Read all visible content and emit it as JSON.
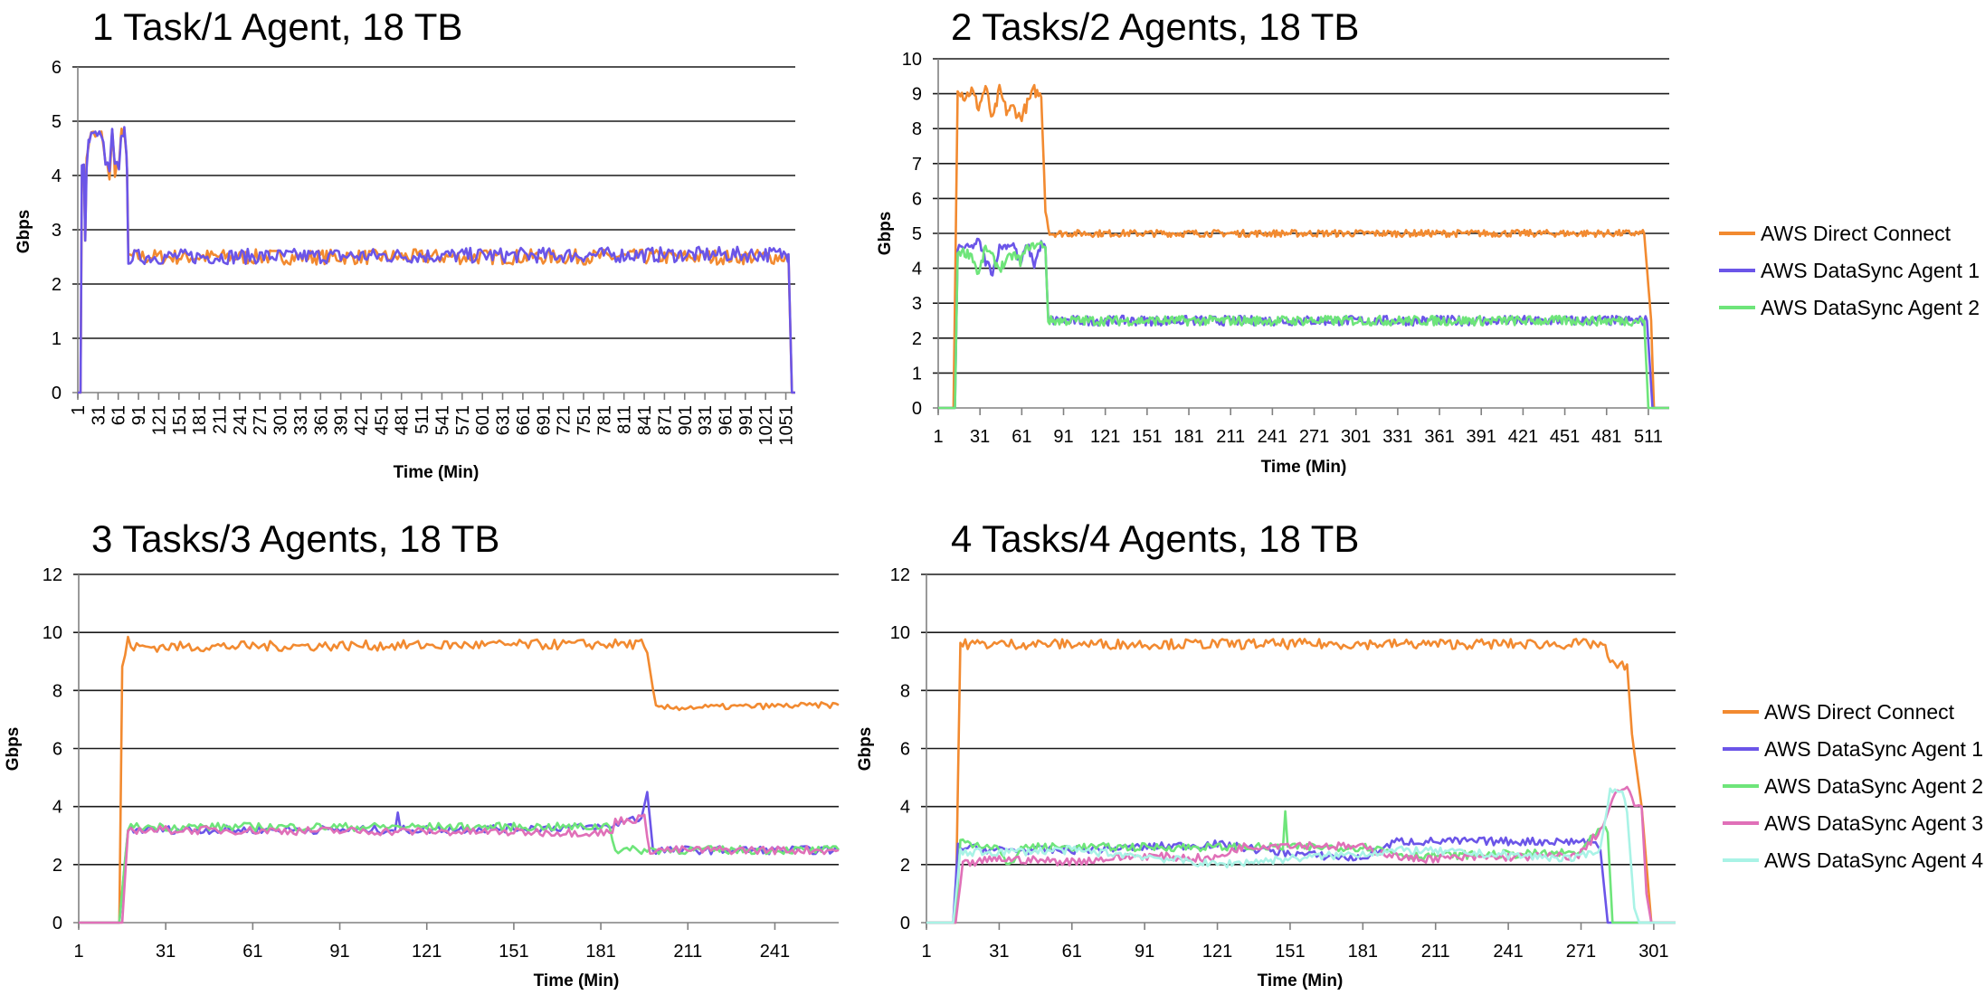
{
  "colors": {
    "direct_connect": "#F28A30",
    "agent1": "#6B55E8",
    "agent2": "#6EE57A",
    "agent3": "#E070B8",
    "agent4": "#A9F3E6"
  },
  "chart_data": [
    {
      "type": "line",
      "title": "1 Task/1 Agent, 18 TB",
      "xlabel": "Time (Min)",
      "ylabel": "Gbps",
      "xlim": [
        1,
        1065
      ],
      "ylim": [
        0,
        6
      ],
      "yticks": [
        "0",
        "1",
        "2",
        "3",
        "4",
        "5",
        "6"
      ],
      "xticks": [
        "1",
        "31",
        "61",
        "91",
        "121",
        "151",
        "181",
        "211",
        "241",
        "271",
        "301",
        "331",
        "361",
        "391",
        "421",
        "451",
        "481",
        "511",
        "541",
        "571",
        "601",
        "631",
        "661",
        "691",
        "721",
        "751",
        "781",
        "811",
        "841",
        "871",
        "901",
        "931",
        "961",
        "991",
        "1021",
        "1051"
      ],
      "xtick_rotation": "vertical",
      "grid": true,
      "legend": "none",
      "series": [
        {
          "color": "#F28A30",
          "points": [
            [
              1,
              0
            ],
            [
              5,
              0
            ],
            [
              7,
              4.1
            ],
            [
              10,
              4.2
            ],
            [
              12,
              2.8
            ],
            [
              14,
              4.2
            ],
            [
              18,
              4.7
            ],
            [
              24,
              4.8
            ],
            [
              30,
              4.7
            ],
            [
              36,
              4.8
            ],
            [
              42,
              4.2
            ],
            [
              48,
              4.0
            ],
            [
              52,
              4.8
            ],
            [
              56,
              4.1
            ],
            [
              62,
              4.2
            ],
            [
              66,
              4.8
            ],
            [
              70,
              4.8
            ],
            [
              74,
              4.1
            ],
            [
              76,
              2.5
            ],
            [
              1055,
              2.5
            ],
            [
              1060,
              0
            ],
            [
              1065,
              0
            ]
          ]
        },
        {
          "color": "#6B55E8",
          "points": [
            [
              1,
              0
            ],
            [
              5,
              0
            ],
            [
              7,
              4.1
            ],
            [
              10,
              4.2
            ],
            [
              12,
              2.8
            ],
            [
              14,
              4.2
            ],
            [
              18,
              4.7
            ],
            [
              24,
              4.8
            ],
            [
              30,
              4.7
            ],
            [
              36,
              4.8
            ],
            [
              42,
              4.2
            ],
            [
              48,
              4.1
            ],
            [
              52,
              4.8
            ],
            [
              56,
              4.1
            ],
            [
              62,
              4.2
            ],
            [
              66,
              4.8
            ],
            [
              70,
              4.8
            ],
            [
              74,
              4.1
            ],
            [
              76,
              2.5
            ],
            [
              1055,
              2.55
            ],
            [
              1060,
              0
            ],
            [
              1065,
              0
            ]
          ]
        }
      ]
    },
    {
      "type": "line",
      "title": "2 Tasks/2 Agents, 18 TB",
      "xlabel": "Time (Min)",
      "ylabel": "Gbps",
      "xlim": [
        1,
        526
      ],
      "ylim": [
        0,
        10
      ],
      "yticks": [
        "0",
        "1",
        "2",
        "3",
        "4",
        "5",
        "6",
        "7",
        "8",
        "9",
        "10"
      ],
      "xticks": [
        "1",
        "31",
        "61",
        "91",
        "121",
        "151",
        "181",
        "211",
        "241",
        "271",
        "301",
        "331",
        "361",
        "391",
        "421",
        "451",
        "481",
        "511"
      ],
      "grid": true,
      "legend": "right",
      "series": [
        {
          "name": "AWS Direct Connect",
          "color": "#F28A30",
          "points": [
            [
              1,
              0
            ],
            [
              12,
              0
            ],
            [
              15,
              9.2
            ],
            [
              20,
              8.9
            ],
            [
              25,
              9.1
            ],
            [
              30,
              8.6
            ],
            [
              35,
              9.2
            ],
            [
              40,
              8.2
            ],
            [
              45,
              9.1
            ],
            [
              50,
              8.5
            ],
            [
              55,
              8.6
            ],
            [
              60,
              8.3
            ],
            [
              65,
              8.7
            ],
            [
              70,
              9.1
            ],
            [
              75,
              8.9
            ],
            [
              78,
              5.7
            ],
            [
              81,
              5.0
            ],
            [
              508,
              5.0
            ],
            [
              513,
              2.5
            ],
            [
              515,
              0
            ],
            [
              526,
              0
            ]
          ]
        },
        {
          "name": "AWS DataSync Agent 1",
          "color": "#6B55E8",
          "points": [
            [
              1,
              0
            ],
            [
              13,
              0
            ],
            [
              15,
              4.6
            ],
            [
              25,
              4.6
            ],
            [
              30,
              4.8
            ],
            [
              35,
              4.2
            ],
            [
              40,
              3.9
            ],
            [
              45,
              4.6
            ],
            [
              55,
              4.7
            ],
            [
              60,
              4.1
            ],
            [
              65,
              4.7
            ],
            [
              70,
              4.1
            ],
            [
              75,
              4.7
            ],
            [
              78,
              4.6
            ],
            [
              80,
              2.5
            ],
            [
              510,
              2.5
            ],
            [
              514,
              0
            ],
            [
              526,
              0
            ]
          ]
        },
        {
          "name": "AWS DataSync Agent 2",
          "color": "#6EE57A",
          "points": [
            [
              1,
              0
            ],
            [
              13,
              0
            ],
            [
              15,
              4.5
            ],
            [
              25,
              4.4
            ],
            [
              30,
              3.8
            ],
            [
              35,
              4.6
            ],
            [
              45,
              4.0
            ],
            [
              55,
              4.4
            ],
            [
              60,
              4.2
            ],
            [
              65,
              4.6
            ],
            [
              75,
              4.7
            ],
            [
              78,
              4.6
            ],
            [
              80,
              2.5
            ],
            [
              508,
              2.5
            ],
            [
              511,
              0
            ],
            [
              526,
              0
            ]
          ]
        }
      ]
    },
    {
      "type": "line",
      "title": "3 Tasks/3 Agents, 18 TB",
      "xlabel": "Time (Min)",
      "ylabel": "Gbps",
      "xlim": [
        1,
        263
      ],
      "ylim": [
        0,
        12
      ],
      "yticks": [
        "0",
        "2",
        "4",
        "6",
        "8",
        "10",
        "12"
      ],
      "xticks": [
        "1",
        "31",
        "61",
        "91",
        "121",
        "151",
        "181",
        "211",
        "241"
      ],
      "grid": true,
      "legend": "none",
      "series": [
        {
          "color": "#F28A30",
          "points": [
            [
              1,
              0
            ],
            [
              15,
              0
            ],
            [
              16,
              8.8
            ],
            [
              18,
              9.7
            ],
            [
              20,
              9.5
            ],
            [
              195,
              9.6
            ],
            [
              197,
              9.3
            ],
            [
              200,
              7.4
            ],
            [
              263,
              7.5
            ]
          ]
        },
        {
          "color": "#6B55E8",
          "points": [
            [
              1,
              0
            ],
            [
              15,
              0
            ],
            [
              18,
              3.2
            ],
            [
              110,
              3.2
            ],
            [
              111,
              3.7
            ],
            [
              112,
              3.2
            ],
            [
              185,
              3.3
            ],
            [
              188,
              3.5
            ],
            [
              195,
              3.6
            ],
            [
              197,
              4.5
            ],
            [
              199,
              2.5
            ],
            [
              263,
              2.5
            ]
          ]
        },
        {
          "color": "#6EE57A",
          "points": [
            [
              1,
              0
            ],
            [
              15,
              0
            ],
            [
              18,
              3.3
            ],
            [
              180,
              3.3
            ],
            [
              184,
              3.4
            ],
            [
              186,
              2.5
            ],
            [
              263,
              2.5
            ]
          ]
        },
        {
          "color": "#E070B8",
          "points": [
            [
              1,
              0
            ],
            [
              16,
              0
            ],
            [
              18,
              3.2
            ],
            [
              185,
              3.1
            ],
            [
              186,
              3.5
            ],
            [
              196,
              3.6
            ],
            [
              198,
              2.5
            ],
            [
              263,
              2.5
            ]
          ]
        }
      ]
    },
    {
      "type": "line",
      "title": "4 Tasks/4 Agents, 18 TB",
      "xlabel": "Time (Min)",
      "ylabel": "Gbps",
      "xlim": [
        1,
        310
      ],
      "ylim": [
        0,
        12
      ],
      "yticks": [
        "0",
        "2",
        "4",
        "6",
        "8",
        "10",
        "12"
      ],
      "xticks": [
        "1",
        "31",
        "61",
        "91",
        "121",
        "151",
        "181",
        "211",
        "241",
        "271",
        "301"
      ],
      "grid": true,
      "legend": "right",
      "series": [
        {
          "name": "AWS Direct Connect",
          "color": "#F28A30",
          "points": [
            [
              1,
              0
            ],
            [
              13,
              0
            ],
            [
              15,
              9.6
            ],
            [
              280,
              9.6
            ],
            [
              283,
              9.0
            ],
            [
              285,
              8.8
            ],
            [
              290,
              8.9
            ],
            [
              292,
              6.5
            ],
            [
              296,
              4.0
            ],
            [
              300,
              0
            ],
            [
              310,
              0
            ]
          ]
        },
        {
          "name": "AWS DataSync Agent 1",
          "color": "#6B55E8",
          "points": [
            [
              1,
              0
            ],
            [
              12,
              0
            ],
            [
              14,
              2.6
            ],
            [
              30,
              2.5
            ],
            [
              60,
              2.5
            ],
            [
              120,
              2.7
            ],
            [
              150,
              2.4
            ],
            [
              180,
              2.2
            ],
            [
              195,
              2.8
            ],
            [
              210,
              2.8
            ],
            [
              240,
              2.8
            ],
            [
              276,
              2.8
            ],
            [
              279,
              2.5
            ],
            [
              282,
              0
            ],
            [
              310,
              0
            ]
          ]
        },
        {
          "name": "AWS DataSync Agent 2",
          "color": "#6EE57A",
          "points": [
            [
              1,
              0
            ],
            [
              13,
              0
            ],
            [
              15,
              2.8
            ],
            [
              30,
              2.6
            ],
            [
              35,
              1.9
            ],
            [
              40,
              2.6
            ],
            [
              120,
              2.6
            ],
            [
              148,
              2.6
            ],
            [
              149,
              3.8
            ],
            [
              150,
              2.6
            ],
            [
              185,
              2.6
            ],
            [
              200,
              2.3
            ],
            [
              270,
              2.4
            ],
            [
              280,
              3.3
            ],
            [
              282,
              3.1
            ],
            [
              284,
              0
            ],
            [
              310,
              0
            ]
          ]
        },
        {
          "name": "AWS DataSync Agent 3",
          "color": "#E070B8",
          "points": [
            [
              1,
              0
            ],
            [
              13,
              0
            ],
            [
              16,
              2.0
            ],
            [
              30,
              2.2
            ],
            [
              60,
              2.1
            ],
            [
              90,
              2.3
            ],
            [
              120,
              2.2
            ],
            [
              130,
              2.6
            ],
            [
              150,
              2.7
            ],
            [
              180,
              2.6
            ],
            [
              200,
              2.2
            ],
            [
              270,
              2.3
            ],
            [
              280,
              3.3
            ],
            [
              285,
              4.5
            ],
            [
              290,
              4.6
            ],
            [
              293,
              4.1
            ],
            [
              296,
              4.0
            ],
            [
              298,
              1.0
            ],
            [
              300,
              0
            ],
            [
              310,
              0
            ]
          ]
        },
        {
          "name": "AWS DataSync Agent 4",
          "color": "#A9F3E6",
          "points": [
            [
              1,
              0
            ],
            [
              12,
              0
            ],
            [
              15,
              2.4
            ],
            [
              60,
              2.5
            ],
            [
              90,
              2.3
            ],
            [
              120,
              2.0
            ],
            [
              150,
              2.2
            ],
            [
              200,
              2.5
            ],
            [
              270,
              2.2
            ],
            [
              279,
              2.6
            ],
            [
              283,
              4.5
            ],
            [
              288,
              4.6
            ],
            [
              290,
              3.8
            ],
            [
              293,
              0.5
            ],
            [
              295,
              0
            ],
            [
              310,
              0
            ]
          ]
        }
      ]
    }
  ]
}
